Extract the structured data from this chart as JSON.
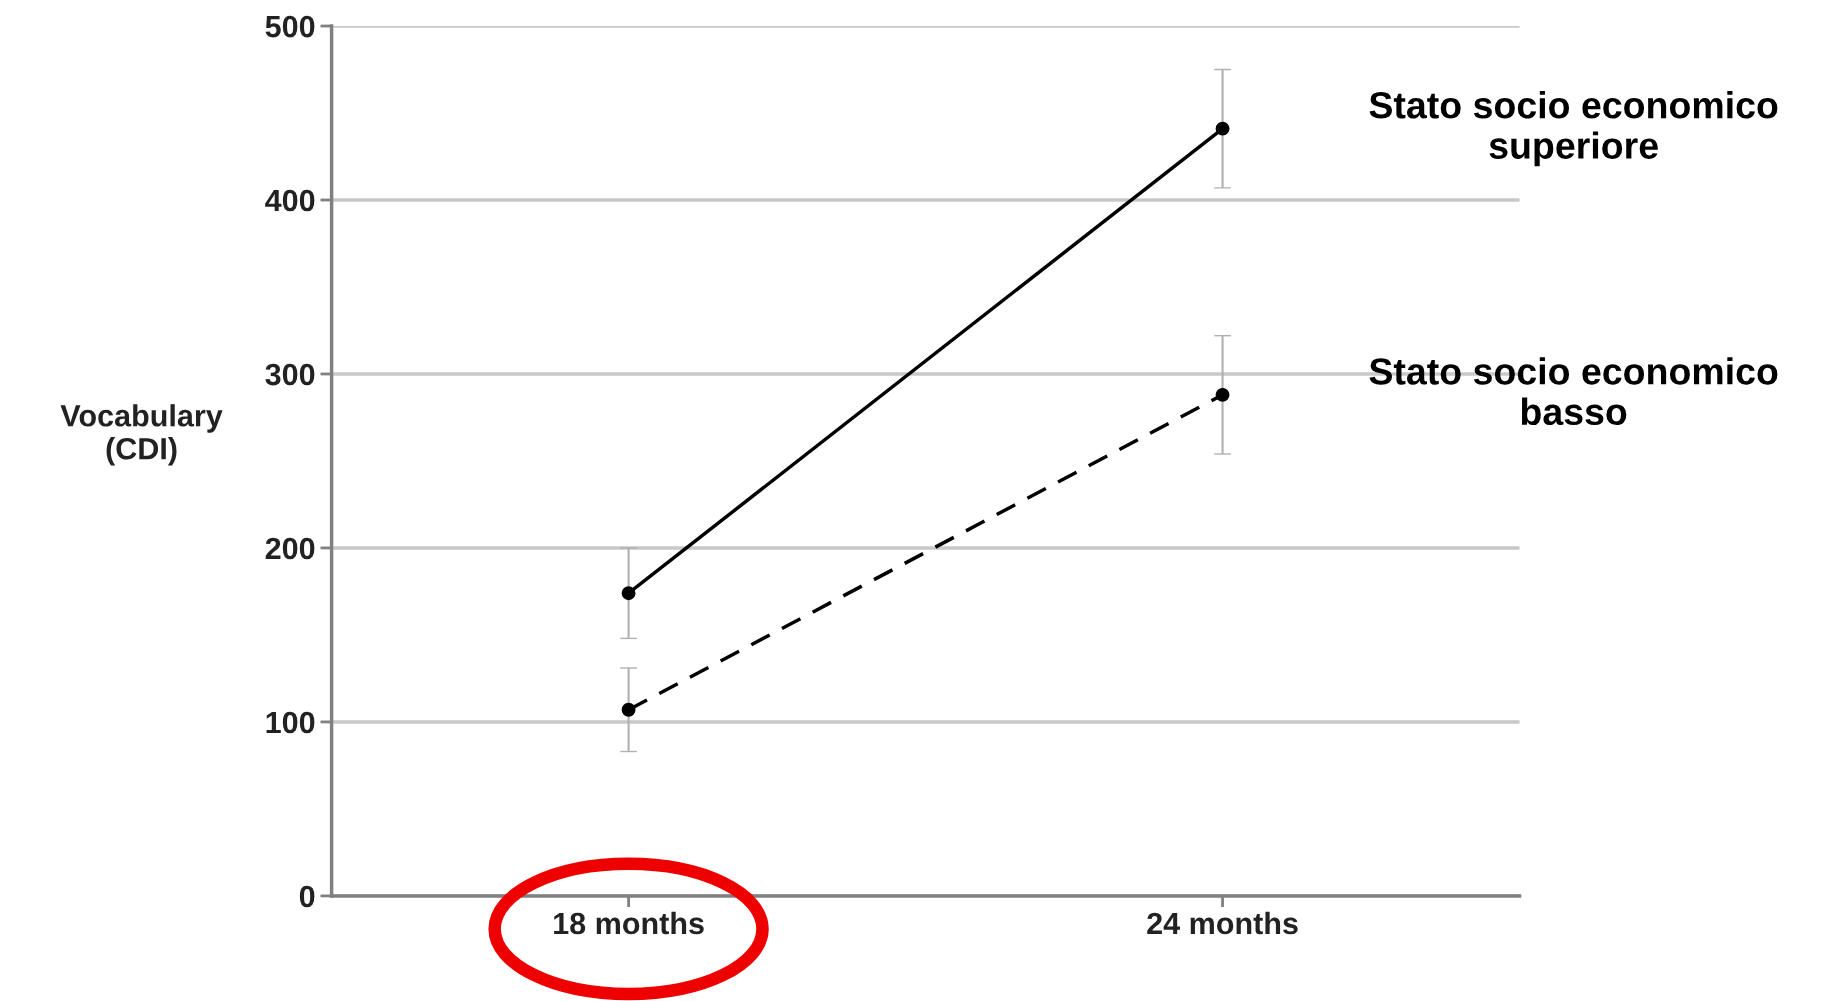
{
  "chart_data": {
    "type": "line",
    "ylabel": "Vocabulary\n(CDI)",
    "categories": [
      "18 months",
      "24 months"
    ],
    "series": [
      {
        "name": "Stato socio economico\nsuperiore",
        "color": "#000000",
        "values": [
          174,
          441
        ],
        "errors": [
          26,
          34
        ],
        "line_style": "solid"
      },
      {
        "name": "Stato socio economico\nbasso",
        "color": "#000000",
        "values": [
          107,
          288
        ],
        "errors": [
          24,
          34
        ],
        "line_style": "dashed"
      }
    ],
    "ylim": [
      0,
      500
    ],
    "yticks": [
      0,
      100,
      200,
      300,
      400,
      500
    ],
    "grid": "y",
    "marker": "circle"
  }
}
